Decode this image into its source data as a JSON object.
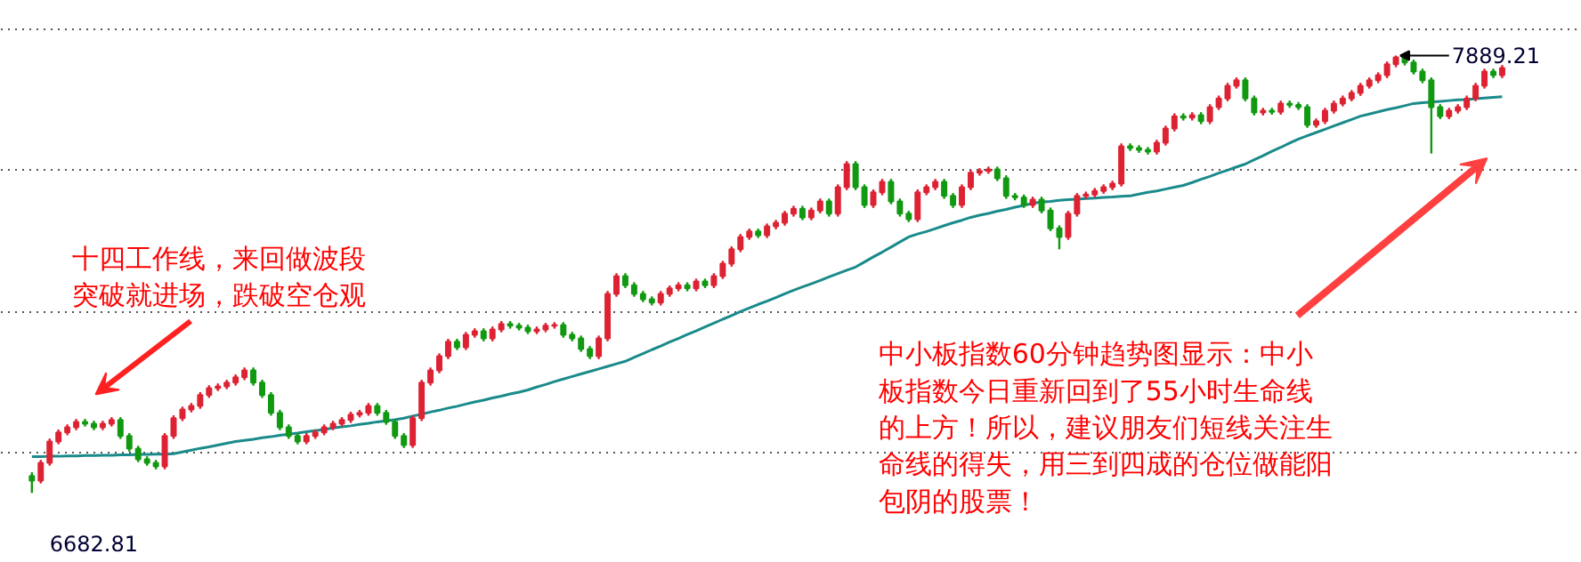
{
  "chart_data": {
    "type": "candlestick",
    "categories": [
      null,
      null,
      null,
      null,
      null,
      null,
      null,
      null,
      null,
      null,
      null,
      null,
      null,
      null,
      null,
      null,
      null,
      null,
      null,
      null,
      null,
      null,
      null,
      null,
      null,
      null,
      null,
      null,
      null,
      null,
      null,
      null,
      null,
      null,
      null,
      null,
      null,
      null,
      null,
      null,
      null,
      null,
      null,
      null,
      null,
      null,
      null,
      null,
      null,
      null,
      null,
      null,
      null,
      null,
      null,
      null,
      null,
      null,
      null,
      null,
      null,
      null,
      null,
      null,
      null,
      null,
      null,
      null,
      null,
      null,
      null,
      null,
      null,
      null,
      null,
      null,
      null,
      null,
      null,
      null,
      null,
      null,
      null,
      null,
      null,
      null,
      null,
      null,
      null,
      null,
      null,
      null,
      null,
      null,
      null,
      null,
      null,
      null,
      null,
      null,
      null,
      null,
      null,
      null,
      null,
      null,
      null,
      null,
      null,
      null,
      null,
      null,
      null,
      null,
      null,
      null,
      null,
      null,
      null,
      null,
      null,
      null,
      null,
      null,
      null,
      null,
      null,
      null,
      null,
      null,
      null,
      null,
      null,
      null,
      null,
      null,
      null,
      null,
      null,
      null,
      null,
      null,
      null,
      null,
      null,
      null,
      null,
      null,
      null,
      null,
      null,
      null,
      null,
      null,
      null,
      null,
      null,
      null,
      null,
      null,
      null,
      null,
      null,
      null,
      null,
      null,
      null
    ],
    "ohlc": [
      [
        6730,
        6740,
        6682.81,
        6717
      ],
      [
        6717,
        6774,
        6709,
        6766
      ],
      [
        6766,
        6833,
        6758,
        6825
      ],
      [
        6825,
        6858,
        6817,
        6850
      ],
      [
        6850,
        6872,
        6842,
        6864
      ],
      [
        6864,
        6887,
        6856,
        6879
      ],
      [
        6879,
        6887,
        6866,
        6874
      ],
      [
        6874,
        6882,
        6856,
        6864
      ],
      [
        6864,
        6882,
        6856,
        6874
      ],
      [
        6874,
        6892,
        6866,
        6884
      ],
      [
        6884,
        6892,
        6832,
        6840
      ],
      [
        6840,
        6848,
        6797,
        6805
      ],
      [
        6805,
        6813,
        6768,
        6776
      ],
      [
        6776,
        6784,
        6758,
        6766
      ],
      [
        6766,
        6774,
        6748,
        6756
      ],
      [
        6756,
        6848,
        6748,
        6840
      ],
      [
        6840,
        6897,
        6832,
        6889
      ],
      [
        6889,
        6921,
        6881,
        6913
      ],
      [
        6913,
        6931,
        6905,
        6923
      ],
      [
        6923,
        6961,
        6915,
        6953
      ],
      [
        6953,
        6980,
        6945,
        6972
      ],
      [
        6972,
        6985,
        6964,
        6977
      ],
      [
        6977,
        6995,
        6969,
        6987
      ],
      [
        6987,
        7010,
        6979,
        7002
      ],
      [
        7002,
        7029,
        6994,
        7021
      ],
      [
        7021,
        7029,
        6979,
        6987
      ],
      [
        6987,
        6995,
        6945,
        6953
      ],
      [
        6953,
        6961,
        6896,
        6904
      ],
      [
        6904,
        6912,
        6856,
        6864
      ],
      [
        6864,
        6872,
        6832,
        6840
      ],
      [
        6840,
        6848,
        6817,
        6825
      ],
      [
        6825,
        6848,
        6817,
        6840
      ],
      [
        6840,
        6858,
        6832,
        6850
      ],
      [
        6850,
        6872,
        6842,
        6864
      ],
      [
        6864,
        6882,
        6856,
        6874
      ],
      [
        6874,
        6892,
        6866,
        6884
      ],
      [
        6884,
        6907,
        6876,
        6899
      ],
      [
        6899,
        6912,
        6891,
        6904
      ],
      [
        6904,
        6931,
        6896,
        6923
      ],
      [
        6923,
        6931,
        6896,
        6904
      ],
      [
        6904,
        6912,
        6871,
        6879
      ],
      [
        6879,
        6887,
        6832,
        6840
      ],
      [
        6840,
        6848,
        6807,
        6815
      ],
      [
        6815,
        6897,
        6807,
        6889
      ],
      [
        6889,
        6995,
        6881,
        6987
      ],
      [
        6987,
        7029,
        6979,
        7021
      ],
      [
        7021,
        7068,
        7013,
        7060
      ],
      [
        7060,
        7108,
        7052,
        7100
      ],
      [
        7100,
        7108,
        7077,
        7085
      ],
      [
        7085,
        7127,
        7077,
        7119
      ],
      [
        7119,
        7137,
        7111,
        7129
      ],
      [
        7129,
        7137,
        7101,
        7109
      ],
      [
        7109,
        7142,
        7101,
        7134
      ],
      [
        7134,
        7157,
        7126,
        7149
      ],
      [
        7149,
        7157,
        7136,
        7144
      ],
      [
        7144,
        7152,
        7131,
        7139
      ],
      [
        7139,
        7147,
        7121,
        7129
      ],
      [
        7129,
        7142,
        7121,
        7134
      ],
      [
        7134,
        7152,
        7126,
        7144
      ],
      [
        7144,
        7154,
        7136,
        7146
      ],
      [
        7146,
        7154,
        7111,
        7119
      ],
      [
        7119,
        7127,
        7101,
        7109
      ],
      [
        7109,
        7117,
        7072,
        7080
      ],
      [
        7080,
        7088,
        7052,
        7060
      ],
      [
        7060,
        7117,
        7052,
        7109
      ],
      [
        7109,
        7240,
        7101,
        7232
      ],
      [
        7232,
        7289,
        7224,
        7281
      ],
      [
        7281,
        7289,
        7248,
        7256
      ],
      [
        7256,
        7264,
        7224,
        7232
      ],
      [
        7232,
        7240,
        7209,
        7217
      ],
      [
        7217,
        7225,
        7200,
        7208
      ],
      [
        7208,
        7240,
        7200,
        7232
      ],
      [
        7232,
        7255,
        7224,
        7247
      ],
      [
        7247,
        7264,
        7239,
        7256
      ],
      [
        7256,
        7264,
        7239,
        7247
      ],
      [
        7247,
        7274,
        7239,
        7266
      ],
      [
        7266,
        7274,
        7248,
        7256
      ],
      [
        7256,
        7289,
        7248,
        7281
      ],
      [
        7281,
        7323,
        7273,
        7315
      ],
      [
        7315,
        7363,
        7307,
        7355
      ],
      [
        7355,
        7397,
        7347,
        7389
      ],
      [
        7389,
        7412,
        7381,
        7404
      ],
      [
        7404,
        7412,
        7386,
        7394
      ],
      [
        7394,
        7426,
        7386,
        7418
      ],
      [
        7418,
        7436,
        7410,
        7428
      ],
      [
        7428,
        7461,
        7420,
        7453
      ],
      [
        7453,
        7475,
        7445,
        7467
      ],
      [
        7467,
        7475,
        7435,
        7443
      ],
      [
        7443,
        7470,
        7435,
        7462
      ],
      [
        7462,
        7495,
        7454,
        7487
      ],
      [
        7487,
        7495,
        7445,
        7453
      ],
      [
        7453,
        7534,
        7445,
        7526
      ],
      [
        7526,
        7598,
        7518,
        7590
      ],
      [
        7590,
        7598,
        7518,
        7526
      ],
      [
        7526,
        7534,
        7469,
        7477
      ],
      [
        7477,
        7520,
        7469,
        7512
      ],
      [
        7512,
        7549,
        7504,
        7541
      ],
      [
        7541,
        7549,
        7479,
        7487
      ],
      [
        7487,
        7495,
        7445,
        7453
      ],
      [
        7453,
        7461,
        7430,
        7438
      ],
      [
        7438,
        7520,
        7430,
        7512
      ],
      [
        7512,
        7534,
        7504,
        7526
      ],
      [
        7526,
        7549,
        7518,
        7541
      ],
      [
        7541,
        7549,
        7494,
        7502
      ],
      [
        7502,
        7510,
        7469,
        7477
      ],
      [
        7477,
        7534,
        7469,
        7526
      ],
      [
        7526,
        7574,
        7518,
        7566
      ],
      [
        7566,
        7579,
        7558,
        7571
      ],
      [
        7571,
        7583,
        7563,
        7575
      ],
      [
        7575,
        7583,
        7543,
        7551
      ],
      [
        7551,
        7559,
        7494,
        7502
      ],
      [
        7502,
        7510,
        7490,
        7498
      ],
      [
        7498,
        7506,
        7469,
        7477
      ],
      [
        7477,
        7500,
        7469,
        7492
      ],
      [
        7492,
        7500,
        7454,
        7462
      ],
      [
        7462,
        7470,
        7405,
        7413
      ],
      [
        7413,
        7421,
        7355,
        7389
      ],
      [
        7389,
        7461,
        7381,
        7453
      ],
      [
        7453,
        7510,
        7445,
        7502
      ],
      [
        7502,
        7514,
        7494,
        7506
      ],
      [
        7506,
        7524,
        7498,
        7516
      ],
      [
        7516,
        7534,
        7508,
        7526
      ],
      [
        7526,
        7544,
        7518,
        7536
      ],
      [
        7536,
        7647,
        7528,
        7639
      ],
      [
        7639,
        7647,
        7626,
        7634
      ],
      [
        7634,
        7642,
        7621,
        7629
      ],
      [
        7629,
        7637,
        7616,
        7624
      ],
      [
        7624,
        7657,
        7616,
        7649
      ],
      [
        7649,
        7696,
        7641,
        7688
      ],
      [
        7688,
        7730,
        7680,
        7722
      ],
      [
        7722,
        7730,
        7710,
        7718
      ],
      [
        7718,
        7733,
        7710,
        7725
      ],
      [
        7725,
        7733,
        7700,
        7708
      ],
      [
        7708,
        7755,
        7700,
        7747
      ],
      [
        7747,
        7779,
        7739,
        7771
      ],
      [
        7771,
        7814,
        7763,
        7806
      ],
      [
        7806,
        7829,
        7798,
        7821
      ],
      [
        7821,
        7829,
        7763,
        7771
      ],
      [
        7771,
        7779,
        7724,
        7732
      ],
      [
        7732,
        7745,
        7724,
        7737
      ],
      [
        7737,
        7745,
        7726,
        7734
      ],
      [
        7734,
        7765,
        7726,
        7757
      ],
      [
        7757,
        7765,
        7745,
        7753
      ],
      [
        7753,
        7761,
        7739,
        7747
      ],
      [
        7747,
        7755,
        7690,
        7698
      ],
      [
        7698,
        7716,
        7690,
        7708
      ],
      [
        7708,
        7745,
        7700,
        7737
      ],
      [
        7737,
        7765,
        7729,
        7757
      ],
      [
        7757,
        7779,
        7749,
        7771
      ],
      [
        7771,
        7794,
        7763,
        7786
      ],
      [
        7786,
        7814,
        7778,
        7806
      ],
      [
        7806,
        7829,
        7798,
        7821
      ],
      [
        7821,
        7843,
        7813,
        7835
      ],
      [
        7835,
        7873,
        7827,
        7865
      ],
      [
        7865,
        7889.21,
        7857,
        7884
      ],
      [
        7884,
        7887,
        7862,
        7870
      ],
      [
        7870,
        7878,
        7837,
        7845
      ],
      [
        7845,
        7853,
        7813,
        7821
      ],
      [
        7821,
        7829,
        7619,
        7747
      ],
      [
        7747,
        7755,
        7714,
        7722
      ],
      [
        7722,
        7745,
        7714,
        7737
      ],
      [
        7737,
        7755,
        7729,
        7747
      ],
      [
        7747,
        7779,
        7739,
        7771
      ],
      [
        7771,
        7814,
        7763,
        7806
      ],
      [
        7806,
        7853,
        7798,
        7845
      ],
      [
        7845,
        7853,
        7827,
        7835
      ],
      [
        7835,
        7863,
        7827,
        7855
      ]
    ],
    "series": [
      {
        "type": "line",
        "color": "#1a8a8a",
        "values": [
          6783,
          6783,
          6784,
          6784,
          6785,
          6785,
          6786,
          6786,
          6787,
          6787,
          6788,
          6788,
          6789,
          6789,
          6790,
          6790,
          6791,
          6796,
          6801,
          6806,
          6810,
          6815,
          6820,
          6825,
          6828,
          6831,
          6835,
          6838,
          6842,
          6845,
          6848,
          6852,
          6855,
          6858,
          6862,
          6865,
          6868,
          6872,
          6875,
          6879,
          6882,
          6885,
          6889,
          6895,
          6900,
          6906,
          6911,
          6917,
          6922,
          6928,
          6934,
          6939,
          6945,
          6950,
          6956,
          6961,
          6967,
          6975,
          6982,
          6990,
          6997,
          7004,
          7011,
          7018,
          7025,
          7032,
          7039,
          7046,
          7057,
          7067,
          7078,
          7088,
          7099,
          7109,
          7120,
          7130,
          7141,
          7151,
          7162,
          7172,
          7183,
          7193,
          7203,
          7212,
          7222,
          7232,
          7242,
          7251,
          7260,
          7269,
          7279,
          7288,
          7297,
          7306,
          7320,
          7334,
          7347,
          7361,
          7375,
          7389,
          7397,
          7404,
          7412,
          7420,
          7428,
          7435,
          7443,
          7449,
          7454,
          7460,
          7465,
          7471,
          7476,
          7482,
          7485,
          7487,
          7490,
          7492,
          7493,
          7495,
          7496,
          7498,
          7499,
          7501,
          7502,
          7507,
          7512,
          7516,
          7521,
          7526,
          7531,
          7539,
          7548,
          7556,
          7565,
          7573,
          7582,
          7590,
          7602,
          7613,
          7625,
          7636,
          7648,
          7659,
          7668,
          7677,
          7686,
          7695,
          7704,
          7713,
          7722,
          7728,
          7734,
          7740,
          7745,
          7751,
          7757,
          7759,
          7761,
          7763,
          7765,
          7767,
          7768,
          7770,
          7772,
          7774,
          7776
        ]
      }
    ],
    "ylim": [
      6490,
      8040
    ],
    "yticks": [
      {
        "value": 7963,
        "label": null
      },
      {
        "value": 7575,
        "label": null
      },
      {
        "value": 7183,
        "label": null
      },
      {
        "value": 6796,
        "label": null
      }
    ],
    "grid": "y",
    "tick_labels": false,
    "annotations": [
      "十四工作线，来回做波段突破就进场，跌破空仓观",
      "中小板指数60分钟趋势图显示：中小板指数今日重新回到了55小时生命线的上方！所以，建议朋友们短线关注生命线的得失，用三到四成的仓位做能阳包阴的股票！",
      "7889.21",
      "6682.81"
    ]
  }
}
